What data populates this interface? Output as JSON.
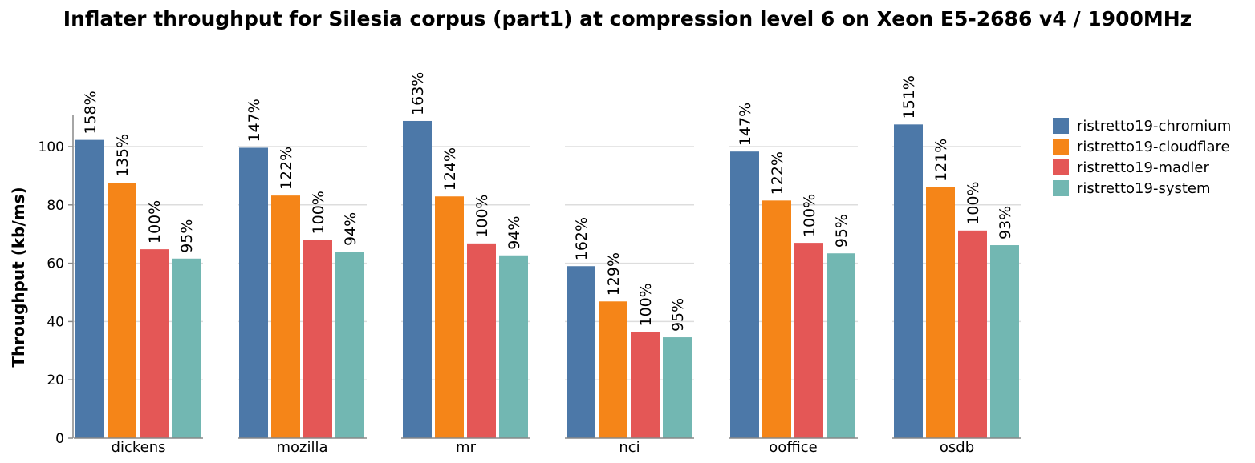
{
  "chart_data": {
    "type": "bar",
    "title": "Inflater throughput for Silesia corpus (part1) at compression level 6 on Xeon E5-2686 v4 / 1900MHz",
    "ylabel": "Throughput (kb/ms)",
    "xlabel": "",
    "ylim": [
      0,
      110
    ],
    "yticks": [
      0,
      20,
      40,
      60,
      80,
      100
    ],
    "grid": true,
    "legend_position": "right",
    "categories": [
      "dickens",
      "mozilla",
      "mr",
      "nci",
      "ooffice",
      "osdb"
    ],
    "series": [
      {
        "name": "ristretto19-chromium",
        "color": "#4c78a8",
        "values": [
          102.3,
          99.6,
          108.8,
          59.0,
          98.3,
          107.6
        ],
        "labels": [
          "158%",
          "147%",
          "163%",
          "162%",
          "147%",
          "151%"
        ]
      },
      {
        "name": "ristretto19-cloudflare",
        "color": "#f58518",
        "values": [
          87.6,
          83.2,
          82.9,
          46.9,
          81.5,
          86.0
        ],
        "labels": [
          "135%",
          "122%",
          "124%",
          "129%",
          "122%",
          "121%"
        ]
      },
      {
        "name": "ristretto19-madler",
        "color": "#e45756",
        "values": [
          64.8,
          68.0,
          66.8,
          36.4,
          67.0,
          71.2
        ],
        "labels": [
          "100%",
          "100%",
          "100%",
          "100%",
          "100%",
          "100%"
        ]
      },
      {
        "name": "ristretto19-system",
        "color": "#72b7b2",
        "values": [
          61.6,
          64.0,
          62.7,
          34.6,
          63.4,
          66.2
        ],
        "labels": [
          "95%",
          "94%",
          "94%",
          "95%",
          "95%",
          "93%"
        ]
      }
    ]
  }
}
